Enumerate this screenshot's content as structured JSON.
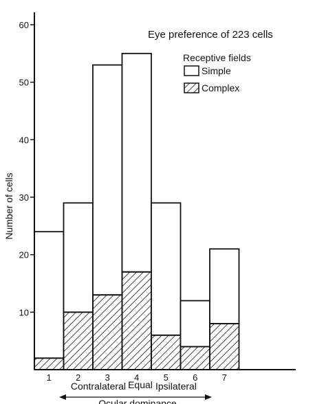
{
  "chart_data": {
    "type": "bar",
    "stacked": true,
    "title": "Eye preference of 223 cells",
    "categories": [
      "1",
      "2",
      "3",
      "4",
      "5",
      "6",
      "7"
    ],
    "series": [
      {
        "name": "Complex",
        "values": [
          2,
          10,
          13,
          17,
          6,
          4,
          8
        ],
        "fill": "hatched"
      },
      {
        "name": "Simple",
        "values": [
          22,
          19,
          40,
          38,
          23,
          8,
          13
        ],
        "fill": "white"
      }
    ],
    "ylabel": "Number of cells",
    "xlabel": "Ocular dominance",
    "ylim": [
      0,
      60
    ],
    "yticks": [
      10,
      20,
      30,
      40,
      50,
      60
    ],
    "legend": {
      "title": "Receptive fields",
      "position": "top-right"
    },
    "dominance_labels": {
      "left": "Contralateral",
      "middle": "Equal",
      "right": "Ipsilateral"
    },
    "grid": false,
    "colors": {
      "ink": "#111111",
      "background": "#ffffff"
    }
  }
}
